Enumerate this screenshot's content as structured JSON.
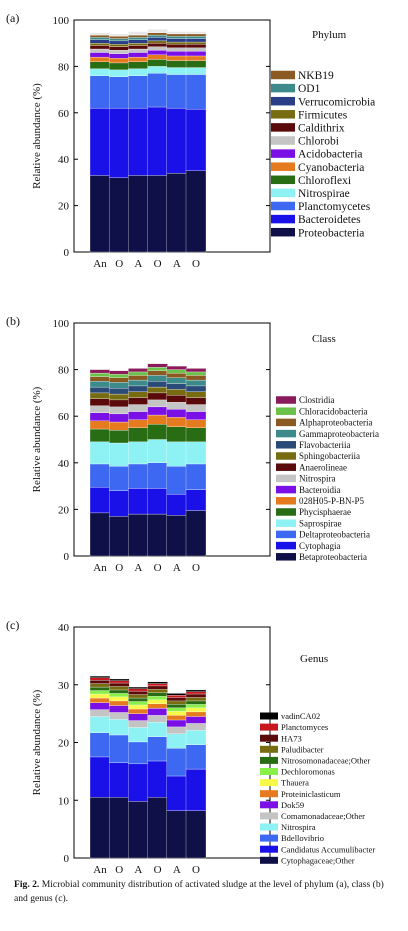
{
  "colors": {
    "Proteobacteria": "#101048",
    "Bacteroidetes": "#1a10e8",
    "Planctomycetes": "#3c68f2",
    "Nitrospirae": "#8ef2f4",
    "Chloroflexi": "#286c14",
    "Cyanobacteria": "#e67a1e",
    "Acidobacteria": "#7a10e6",
    "Chlorobi": "#c4c4c4",
    "Caldithrix": "#5a0a0a",
    "Firmicutes": "#786c12",
    "Verrucomicrobia": "#2a3e88",
    "OD1": "#3c8a8a",
    "NKB19": "#8a5a22",
    "Other": "#e8e8e8"
  },
  "caption": {
    "label": "Fig. 2.",
    "text": "Microbial community distribution of activated sludge at the level of phylum (a), class (b) and genus (c)."
  },
  "chart_data": [
    {
      "type": "bar",
      "stacked": true,
      "panel_label": "(a)",
      "legend_title": "Phylum",
      "ylabel": "Relative abundance (%)",
      "xlabel": "",
      "ylim": [
        0,
        100
      ],
      "yticks": [
        0,
        20,
        40,
        60,
        80,
        100
      ],
      "categories": [
        "An",
        "O",
        "A",
        "O",
        "A",
        "O"
      ],
      "series": [
        {
          "name": "Proteobacteria",
          "color": "#101048",
          "values": [
            33,
            32,
            33,
            33,
            34,
            35
          ]
        },
        {
          "name": "Bacteroidetes",
          "color": "#1a10e8",
          "values": [
            29,
            30,
            29,
            29.5,
            28,
            26.5
          ]
        },
        {
          "name": "Planctomycetes",
          "color": "#3c68f2",
          "values": [
            14,
            13.5,
            14,
            14.5,
            14.5,
            15
          ]
        },
        {
          "name": "Nitrospirae",
          "color": "#8ef2f4",
          "values": [
            3,
            3,
            3,
            3,
            3,
            3
          ]
        },
        {
          "name": "Chloroflexi",
          "color": "#286c14",
          "values": [
            3,
            3,
            3,
            3,
            3,
            3
          ]
        },
        {
          "name": "Cyanobacteria",
          "color": "#e67a1e",
          "values": [
            2,
            2,
            2,
            2,
            2,
            2
          ]
        },
        {
          "name": "Acidobacteria",
          "color": "#7a10e6",
          "values": [
            2,
            2,
            2,
            2,
            2,
            2
          ]
        },
        {
          "name": "Chlorobi",
          "color": "#c4c4c4",
          "values": [
            1.5,
            1.5,
            1.5,
            1.5,
            1.5,
            1.5
          ]
        },
        {
          "name": "Caldithrix",
          "color": "#5a0a0a",
          "values": [
            1.5,
            1.5,
            1.5,
            1.5,
            1.5,
            1.5
          ]
        },
        {
          "name": "Firmicutes",
          "color": "#786c12",
          "values": [
            1,
            1,
            1,
            1,
            1,
            1
          ]
        },
        {
          "name": "Verrucomicrobia",
          "color": "#2a3e88",
          "values": [
            1.5,
            1.5,
            1.5,
            1.5,
            1.5,
            1.5
          ]
        },
        {
          "name": "OD1",
          "color": "#3c8a8a",
          "values": [
            1,
            1,
            1,
            1,
            1,
            1
          ]
        },
        {
          "name": "NKB19",
          "color": "#8a5a22",
          "values": [
            1,
            1,
            1,
            1,
            1,
            1
          ]
        },
        {
          "name": "",
          "color": "#e8e8e8",
          "values": [
            1,
            1,
            1.5,
            1.5,
            1,
            1
          ]
        }
      ]
    },
    {
      "type": "bar",
      "stacked": true,
      "panel_label": "(b)",
      "legend_title": "Class",
      "ylabel": "Relative abundance (%)",
      "xlabel": "",
      "ylim": [
        0,
        100
      ],
      "yticks": [
        0,
        20,
        40,
        60,
        80,
        100
      ],
      "categories": [
        "An",
        "O",
        "A",
        "O",
        "A",
        "O"
      ],
      "series": [
        {
          "name": "Betaproteobacteria",
          "color": "#101048",
          "values": [
            18.5,
            17,
            18,
            18,
            17.5,
            19.5
          ]
        },
        {
          "name": "Cytophagia",
          "color": "#1a10e8",
          "values": [
            11,
            11,
            11,
            11,
            9,
            9
          ]
        },
        {
          "name": "Deltaproteobacteria",
          "color": "#3c68f2",
          "values": [
            10,
            10.5,
            10.5,
            11,
            12,
            11
          ]
        },
        {
          "name": "Saprospirae",
          "color": "#8ef2f4",
          "values": [
            9.5,
            10,
            9.5,
            10,
            10.5,
            9.5
          ]
        },
        {
          "name": "Phycisphaerae",
          "color": "#286c14",
          "values": [
            5.5,
            5.5,
            6,
            6.5,
            6.5,
            6
          ]
        },
        {
          "name": "028H05-P-BN-P5",
          "color": "#e67a1e",
          "values": [
            3.5,
            3.5,
            3.5,
            4,
            4,
            3.5
          ]
        },
        {
          "name": "Bacteroidia",
          "color": "#7a10e6",
          "values": [
            3.5,
            3.5,
            3.5,
            3.5,
            3.5,
            3.5
          ]
        },
        {
          "name": "Nitrospira",
          "color": "#c4c4c4",
          "values": [
            3,
            3,
            3,
            3,
            3,
            3
          ]
        },
        {
          "name": "Anaerolineae",
          "color": "#5a0a0a",
          "values": [
            3,
            3,
            3,
            3,
            3,
            3
          ]
        },
        {
          "name": "Sphingobacteriia",
          "color": "#786c12",
          "values": [
            2.5,
            2.5,
            2.5,
            2.5,
            2.5,
            2.5
          ]
        },
        {
          "name": "Flavobacteriia",
          "color": "#2a4a78",
          "values": [
            2.5,
            2.5,
            2.5,
            2.5,
            2.5,
            2.5
          ]
        },
        {
          "name": "Gammaproteobacteria",
          "color": "#3c8a8a",
          "values": [
            2.5,
            2.5,
            2.5,
            2.5,
            2.5,
            2.5
          ]
        },
        {
          "name": "Alphaproteobacteria",
          "color": "#8a5a22",
          "values": [
            2,
            2,
            2,
            2,
            2,
            2
          ]
        },
        {
          "name": "Chloracidobacteria",
          "color": "#6ac24a",
          "values": [
            1.5,
            1.5,
            1.5,
            1.5,
            1.5,
            1.5
          ]
        },
        {
          "name": "Clostridia",
          "color": "#8a1a5a",
          "values": [
            1.5,
            1.5,
            1.5,
            1.5,
            1.5,
            1.5
          ]
        }
      ]
    },
    {
      "type": "bar",
      "stacked": true,
      "panel_label": "(c)",
      "legend_title": "Genus",
      "ylabel": "Relative abundance (%)",
      "xlabel": "",
      "ylim": [
        0,
        40
      ],
      "yticks": [
        0,
        10,
        20,
        30,
        40
      ],
      "categories": [
        "An",
        "O",
        "A",
        "O",
        "A",
        "O"
      ],
      "series": [
        {
          "name": "Cytophagaceae;Other",
          "color": "#101048",
          "values": [
            10.5,
            10.5,
            9.8,
            10.5,
            8.2,
            8.2
          ]
        },
        {
          "name": "Candidatus Accumulibacter",
          "color": "#1a10e8",
          "values": [
            7,
            6,
            6.5,
            6.3,
            6,
            7.2
          ]
        },
        {
          "name": "Bdellovibrio",
          "color": "#3c68f2",
          "values": [
            4.2,
            4.8,
            3.8,
            4.2,
            4.8,
            4.2
          ]
        },
        {
          "name": "Nitrospira",
          "color": "#8ef2f4",
          "values": [
            2.8,
            2.7,
            2.5,
            2.5,
            2.5,
            2.5
          ]
        },
        {
          "name": "Comamonadaceae;Other",
          "color": "#c4c4c4",
          "values": [
            1.2,
            1.2,
            1.2,
            1.2,
            1.2,
            1.2
          ]
        },
        {
          "name": "Dok59",
          "color": "#7a10e6",
          "values": [
            1.2,
            1.2,
            1.2,
            1.2,
            1.2,
            1.2
          ]
        },
        {
          "name": "Proteiniclasticum",
          "color": "#e67a1e",
          "values": [
            0.8,
            0.8,
            0.8,
            0.8,
            0.8,
            0.8
          ]
        },
        {
          "name": "Thauera",
          "color": "#f8f848",
          "values": [
            0.7,
            0.7,
            0.7,
            0.7,
            0.7,
            0.7
          ]
        },
        {
          "name": "Dechloromonas",
          "color": "#88f048",
          "values": [
            0.6,
            0.6,
            0.6,
            0.6,
            0.6,
            0.6
          ]
        },
        {
          "name": "Nitrosomonadaceae;Other",
          "color": "#286c14",
          "values": [
            0.6,
            0.6,
            0.6,
            0.6,
            0.6,
            0.6
          ]
        },
        {
          "name": "Paludibacter",
          "color": "#786c12",
          "values": [
            0.6,
            0.6,
            0.6,
            0.6,
            0.6,
            0.6
          ]
        },
        {
          "name": "HA73",
          "color": "#5a0a0a",
          "values": [
            0.6,
            0.6,
            0.6,
            0.6,
            0.6,
            0.6
          ]
        },
        {
          "name": "Planctomyces",
          "color": "#c8181e",
          "values": [
            0.4,
            0.4,
            0.4,
            0.4,
            0.4,
            0.4
          ]
        },
        {
          "name": "vadinCA02",
          "color": "#000000",
          "values": [
            0.3,
            0.3,
            0.3,
            0.3,
            0.3,
            0.3
          ]
        }
      ]
    }
  ]
}
